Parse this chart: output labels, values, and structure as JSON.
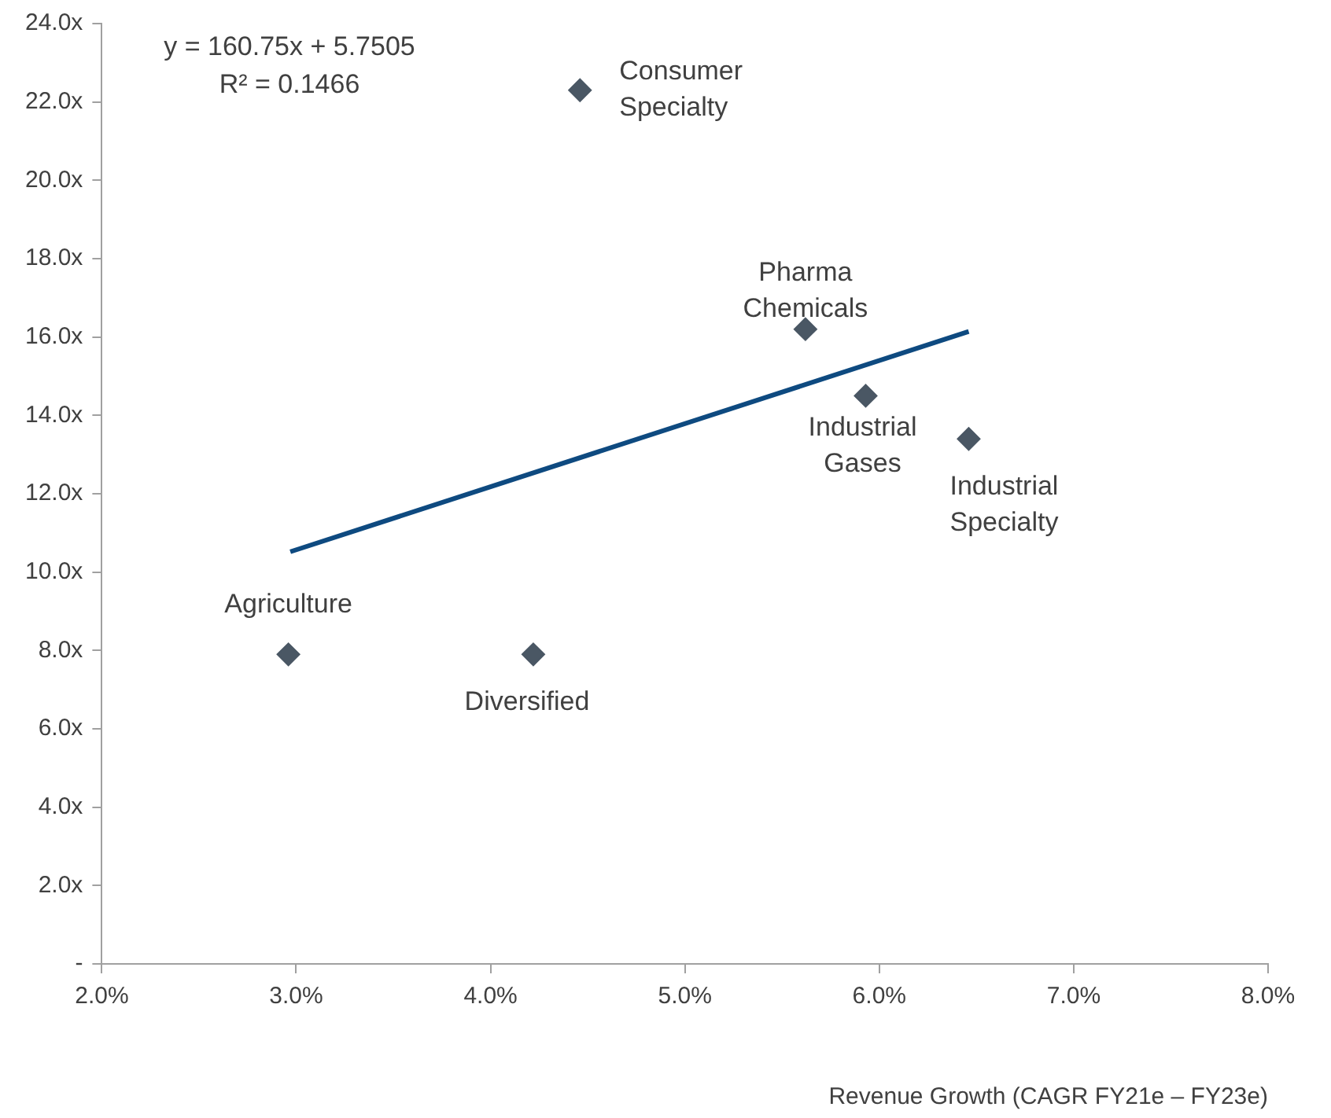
{
  "chart_data": {
    "type": "scatter",
    "xlabel": "Revenue Growth (CAGR FY21e – FY23e)",
    "xlim": [
      2,
      8
    ],
    "xticks": [
      {
        "value": 2,
        "label": "2.0%"
      },
      {
        "value": 3,
        "label": "3.0%"
      },
      {
        "value": 4,
        "label": "4.0%"
      },
      {
        "value": 5,
        "label": "5.0%"
      },
      {
        "value": 6,
        "label": "6.0%"
      },
      {
        "value": 7,
        "label": "7.0%"
      },
      {
        "value": 8,
        "label": "8.0%"
      }
    ],
    "ylim": [
      0,
      24
    ],
    "yticks": [
      {
        "value": 0,
        "label": "-"
      },
      {
        "value": 2,
        "label": "2.0x"
      },
      {
        "value": 4,
        "label": "4.0x"
      },
      {
        "value": 6,
        "label": "6.0x"
      },
      {
        "value": 8,
        "label": "8.0x"
      },
      {
        "value": 10,
        "label": "10.0x"
      },
      {
        "value": 12,
        "label": "12.0x"
      },
      {
        "value": 14,
        "label": "14.0x"
      },
      {
        "value": 16,
        "label": "16.0x"
      },
      {
        "value": 18,
        "label": "18.0x"
      },
      {
        "value": 20,
        "label": "20.0x"
      },
      {
        "value": 22,
        "label": "22.0x"
      },
      {
        "value": 24,
        "label": "24.0x"
      }
    ],
    "grid": false,
    "legend": false,
    "series": [
      {
        "type": "scatter",
        "color": "#4a5764",
        "marker": "diamond",
        "x": [
          4.46,
          5.62,
          5.93,
          6.46,
          2.96,
          4.22
        ],
        "values": [
          22.3,
          16.2,
          14.5,
          13.4,
          7.9,
          7.9
        ]
      },
      {
        "type": "line",
        "color": "#0e4a80",
        "marker": "none",
        "x": [
          2.97,
          6.46
        ],
        "values": [
          10.52,
          16.14
        ]
      }
    ],
    "annotations": [
      "y = 160.75x + 5.7505",
      "R² = 0.1466",
      {
        "text": "Consumer Specialty",
        "x": 4.46,
        "y": 22.3
      },
      {
        "text": "Pharma Chemicals",
        "x": 5.62,
        "y": 16.2
      },
      {
        "text": "Industrial Gases",
        "x": 5.93,
        "y": 14.5
      },
      {
        "text": "Industrial Specialty",
        "x": 6.46,
        "y": 13.4
      },
      {
        "text": "Agriculture",
        "x": 2.96,
        "y": 7.9
      },
      {
        "text": "Diversified",
        "x": 4.22,
        "y": 7.9
      }
    ]
  }
}
